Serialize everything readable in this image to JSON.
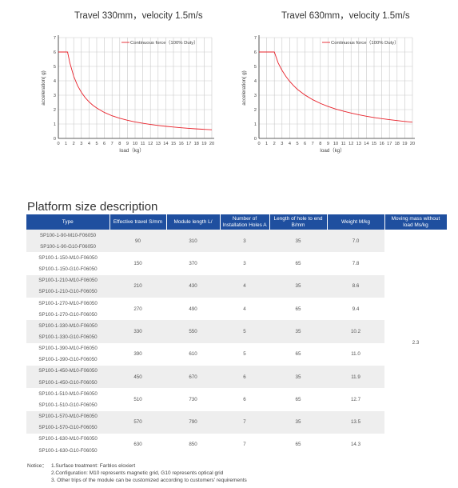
{
  "chart_data": [
    {
      "type": "line",
      "title": "Travel 330mm，velocity 1.5m/s",
      "xlabel": "load（kg）",
      "ylabel": "acceleration( g)",
      "xlim": [
        0,
        20
      ],
      "ylim": [
        0,
        7
      ],
      "xticks": [
        "0",
        "1",
        "2",
        "3",
        "4",
        "5",
        "6",
        "7",
        "8",
        "9",
        "10",
        "11",
        "12",
        "13",
        "14",
        "15",
        "16",
        "17",
        "18",
        "19",
        "20"
      ],
      "yticks": [
        "0",
        "1",
        "2",
        "3",
        "4",
        "5",
        "6",
        "7"
      ],
      "grid": true,
      "legend_position": "top-right",
      "series": [
        {
          "name": "Continuous force（100% Duty）",
          "color": "#e8212a",
          "x": [
            0,
            1,
            1.2,
            1.5,
            2,
            2.5,
            3,
            3.5,
            4,
            4.5,
            5,
            6,
            7,
            8,
            9,
            10,
            11,
            12,
            13,
            14,
            15,
            16,
            17,
            18,
            19,
            20
          ],
          "y": [
            6,
            6,
            6,
            5.24,
            4.32,
            3.67,
            3.2,
            2.83,
            2.54,
            2.3,
            2.11,
            1.8,
            1.57,
            1.4,
            1.26,
            1.14,
            1.05,
            0.97,
            0.9,
            0.84,
            0.79,
            0.74,
            0.7,
            0.66,
            0.63,
            0.6
          ]
        }
      ]
    },
    {
      "type": "line",
      "title": "Travel 630mm，velocity 1.5m/s",
      "xlabel": "load（kg）",
      "ylabel": "acceleration( g)",
      "xlim": [
        0,
        20
      ],
      "ylim": [
        0,
        7
      ],
      "xticks": [
        "0",
        "1",
        "2",
        "3",
        "4",
        "5",
        "6",
        "7",
        "8",
        "9",
        "10",
        "11",
        "12",
        "13",
        "14",
        "15",
        "16",
        "17",
        "18",
        "19",
        "20"
      ],
      "yticks": [
        "0",
        "1",
        "2",
        "3",
        "4",
        "5",
        "6",
        "7"
      ],
      "grid": true,
      "legend_position": "top-right",
      "series": [
        {
          "name": "Continuous force（100% Duty）",
          "color": "#e8212a",
          "x": [
            0,
            1,
            2,
            2.5,
            3,
            3.5,
            4,
            4.5,
            5,
            6,
            7,
            8,
            9,
            10,
            11,
            12,
            13,
            14,
            15,
            16,
            17,
            18,
            19,
            20
          ],
          "y": [
            6,
            6,
            6,
            5.24,
            4.73,
            4.31,
            3.96,
            3.67,
            3.41,
            3.01,
            2.69,
            2.43,
            2.22,
            2.04,
            1.89,
            1.76,
            1.64,
            1.54,
            1.45,
            1.37,
            1.3,
            1.24,
            1.18,
            1.13
          ]
        }
      ]
    }
  ],
  "section_title": "Platform size description",
  "table": {
    "headers": [
      "Type",
      "Effective travel S/mm",
      "Module length L/",
      "Number of Installation Holes A",
      "Length of hole to end B/mm",
      "Weight M/kg",
      "Moving mass without load Ms/kg"
    ],
    "rows": [
      {
        "types": [
          "SP100-1-90-M10-F06050",
          "SP100-1-90-G10-F06050"
        ],
        "travel": "90",
        "length": "310",
        "holes": "3",
        "b": "35",
        "weight": "7.0"
      },
      {
        "types": [
          "SP100-1-150-M10-F06050",
          "SP100-1-150-G10-F06050"
        ],
        "travel": "150",
        "length": "370",
        "holes": "3",
        "b": "65",
        "weight": "7.8"
      },
      {
        "types": [
          "SP100-1-210-M10-F06050",
          "SP100-1-210-G10-F06050"
        ],
        "travel": "210",
        "length": "430",
        "holes": "4",
        "b": "35",
        "weight": "8.6"
      },
      {
        "types": [
          "SP100-1-270-M10-F06050",
          "SP100-1-270-G10-F06050"
        ],
        "travel": "270",
        "length": "490",
        "holes": "4",
        "b": "65",
        "weight": "9.4"
      },
      {
        "types": [
          "SP100-1-330-M10-F06050",
          "SP100-1-330-G10-F06050"
        ],
        "travel": "330",
        "length": "550",
        "holes": "5",
        "b": "35",
        "weight": "10.2"
      },
      {
        "types": [
          "SP100-1-390-M10-F06050",
          "SP100-1-390-G10-F06050"
        ],
        "travel": "390",
        "length": "610",
        "holes": "5",
        "b": "65",
        "weight": "11.0"
      },
      {
        "types": [
          "SP100-1-450-M10-F06050",
          "SP100-1-450-G10-F06050"
        ],
        "travel": "450",
        "length": "670",
        "holes": "6",
        "b": "35",
        "weight": "11.9"
      },
      {
        "types": [
          "SP100-1-510-M10-F06050",
          "SP100-1-510-G10-F06050"
        ],
        "travel": "510",
        "length": "730",
        "holes": "6",
        "b": "65",
        "weight": "12.7"
      },
      {
        "types": [
          "SP100-1-570-M10-F06050",
          "SP100-1-570-G10-F06050"
        ],
        "travel": "570",
        "length": "790",
        "holes": "7",
        "b": "35",
        "weight": "13.5"
      },
      {
        "types": [
          "SP100-1-630-M10-F06050",
          "SP100-1-630-G10-F06050"
        ],
        "travel": "630",
        "length": "850",
        "holes": "7",
        "b": "65",
        "weight": "14.3"
      }
    ],
    "moving_mass": "2.3"
  },
  "notice": {
    "label": "Notice：",
    "lines": [
      "1.Surface treatment: Farblos eloxiert",
      "2.Configuration: M10 represents magnetic grid, G10 represents optical grid",
      "3. Other trips of the module can be customized according to customers' requirements"
    ]
  }
}
